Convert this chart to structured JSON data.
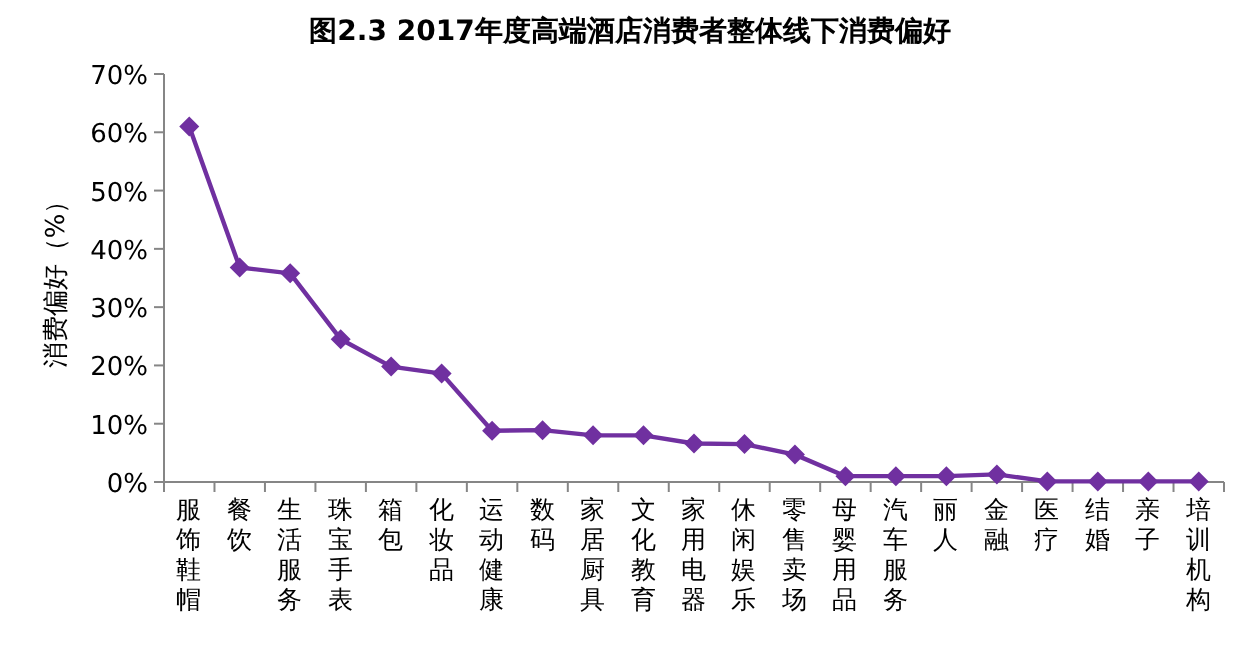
{
  "chart_data": {
    "type": "line",
    "title": "图2.3 2017年度高端酒店消费者整体线下消费偏好",
    "ylabel": "消费偏好（%）",
    "categories": [
      "服饰鞋帽",
      "餐饮",
      "生活服务",
      "珠宝手表",
      "箱包",
      "化妆品",
      "运动健康",
      "数码",
      "家居厨具",
      "文化教育",
      "家用电器",
      "休闲娱乐",
      "零售卖场",
      "母婴用品",
      "汽车服务",
      "丽人",
      "金融",
      "医疗",
      "结婚",
      "亲子",
      "培训机构"
    ],
    "series": [
      {
        "color": "#7030a0",
        "values": [
          61,
          36.8,
          35.8,
          24.5,
          19.8,
          18.6,
          8.8,
          8.9,
          8.0,
          8.0,
          6.6,
          6.5,
          4.7,
          1.0,
          1.0,
          1.0,
          1.3,
          0.1,
          0.1,
          0.1,
          0.1
        ]
      }
    ],
    "ylim": [
      0,
      70
    ],
    "yticks": [
      {
        "value": 0,
        "label": "0%"
      },
      {
        "value": 10,
        "label": "10%"
      },
      {
        "value": 20,
        "label": "20%"
      },
      {
        "value": 30,
        "label": "30%"
      },
      {
        "value": 40,
        "label": "40%"
      },
      {
        "value": 50,
        "label": "50%"
      },
      {
        "value": 60,
        "label": "60%"
      },
      {
        "value": 70,
        "label": "70%"
      }
    ],
    "grid": false,
    "marker": "diamond",
    "line_style": "solid"
  }
}
